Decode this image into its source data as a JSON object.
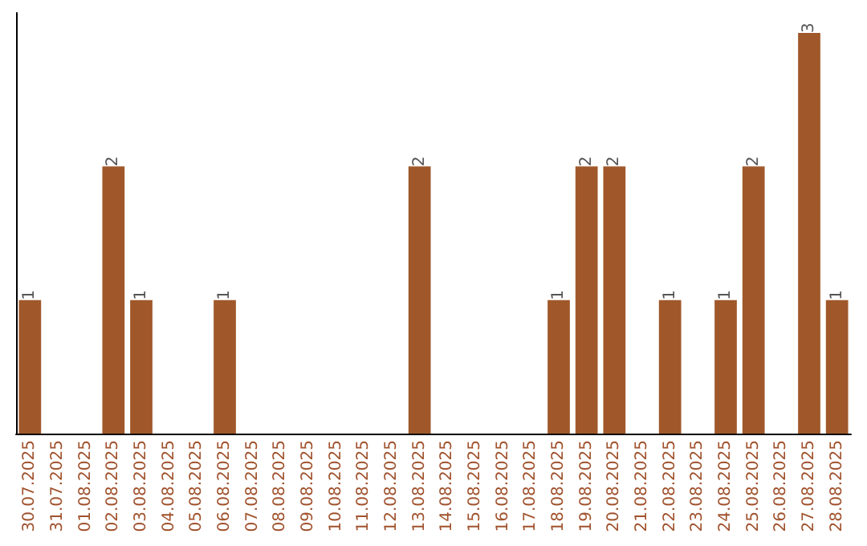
{
  "chart_data": {
    "type": "bar",
    "categories": [
      "30.07.2025",
      "31.07.2025",
      "01.08.2025",
      "02.08.2025",
      "03.08.2025",
      "04.08.2025",
      "05.08.2025",
      "06.08.2025",
      "07.08.2025",
      "08.08.2025",
      "09.08.2025",
      "10.08.2025",
      "11.08.2025",
      "12.08.2025",
      "13.08.2025",
      "14.08.2025",
      "15.08.2025",
      "16.08.2025",
      "17.08.2025",
      "18.08.2025",
      "19.08.2025",
      "20.08.2025",
      "21.08.2025",
      "22.08.2025",
      "23.08.2025",
      "24.08.2025",
      "25.08.2025",
      "26.08.2025",
      "27.08.2025",
      "28.08.2025"
    ],
    "values": [
      1,
      0,
      0,
      2,
      1,
      0,
      0,
      1,
      0,
      0,
      0,
      0,
      0,
      0,
      2,
      0,
      0,
      0,
      0,
      1,
      2,
      2,
      0,
      1,
      0,
      1,
      2,
      0,
      3,
      1
    ],
    "value_labels": [
      "1",
      null,
      null,
      "2",
      "1",
      null,
      null,
      "1",
      null,
      null,
      null,
      null,
      null,
      null,
      "2",
      null,
      null,
      null,
      null,
      "1",
      "2",
      "2",
      null,
      "1",
      null,
      "1",
      "2",
      null,
      "3",
      "1"
    ],
    "color": "#a0582a"
  }
}
